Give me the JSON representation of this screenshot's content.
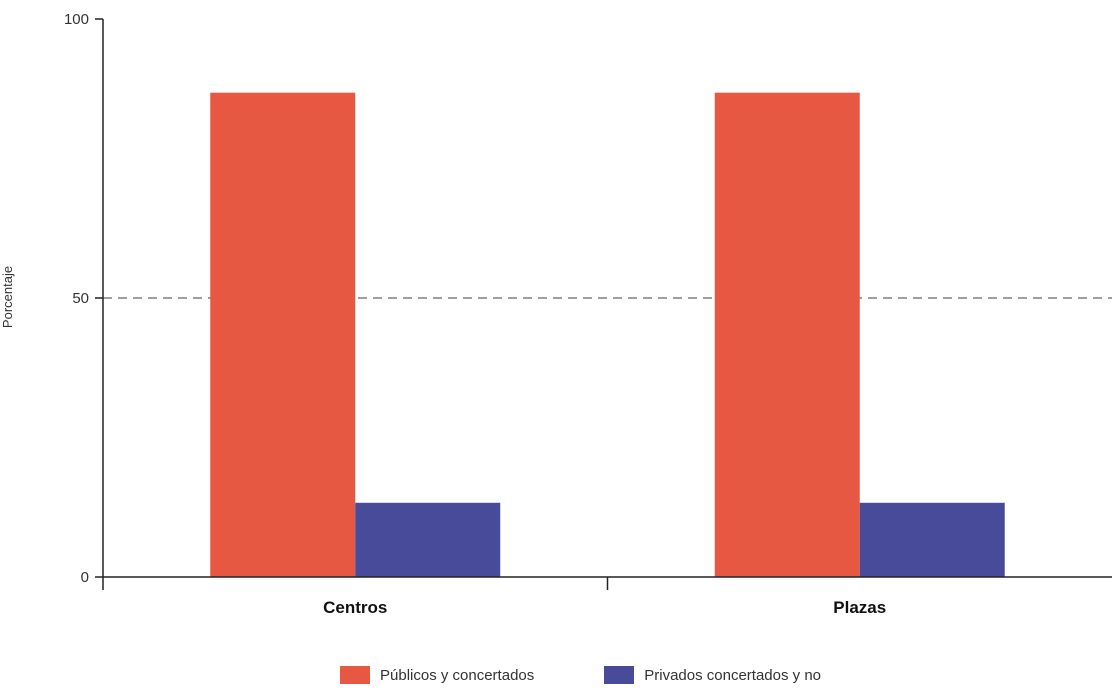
{
  "chart_data": {
    "type": "bar",
    "title": "",
    "xlabel": "",
    "ylabel": "Porcentaje",
    "ylim": [
      0,
      100
    ],
    "yticks": [
      0,
      50,
      100
    ],
    "categories": [
      "Centros",
      "Plazas"
    ],
    "series": [
      {
        "name": "Públicos y concertados",
        "values": [
          86.8,
          86.8
        ],
        "color": "#e75843"
      },
      {
        "name": "Privados concertados y no",
        "values": [
          13.3,
          13.3
        ],
        "color": "#474b9a"
      }
    ],
    "gridlines": [
      50
    ],
    "grid_style": "dashed",
    "legend_position": "bottom"
  }
}
